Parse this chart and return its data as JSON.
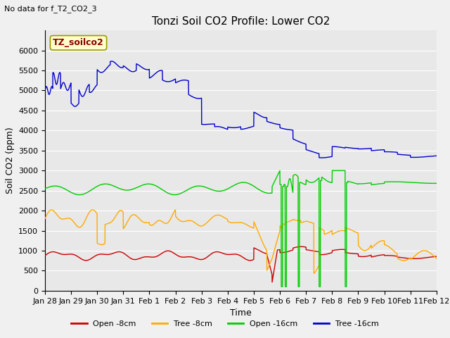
{
  "title": "Tonzi Soil CO2 Profile: Lower CO2",
  "subtitle": "No data for f_T2_CO2_3",
  "xlabel": "Time",
  "ylabel": "Soil CO2 (ppm)",
  "legend_label": "TZ_soilco2",
  "ylim": [
    0,
    6500
  ],
  "yticks": [
    0,
    500,
    1000,
    1500,
    2000,
    2500,
    3000,
    3500,
    4000,
    4500,
    5000,
    5500,
    6000
  ],
  "fig_bg": "#f0f0f0",
  "plot_bg": "#e8e8e8",
  "legend_entries": [
    "Open -8cm",
    "Tree -8cm",
    "Open -16cm",
    "Tree -16cm"
  ],
  "color_open8": "#cc0000",
  "color_tree8": "#ffaa00",
  "color_open16": "#00cc00",
  "color_tree16": "#0000cc",
  "x_tick_labels": [
    "Jan 28",
    "Jan 29",
    "Jan 30",
    "Jan 31",
    "Feb 1",
    "Feb 2",
    "Feb 3",
    "Feb 4",
    "Feb 5",
    "Feb 6",
    "Feb 7",
    "Feb 8",
    "Feb 9",
    "Feb 10",
    "Feb 11",
    "Feb 12"
  ],
  "title_fontsize": 11,
  "axis_label_fontsize": 9,
  "tick_fontsize": 8,
  "legend_fontsize": 8
}
